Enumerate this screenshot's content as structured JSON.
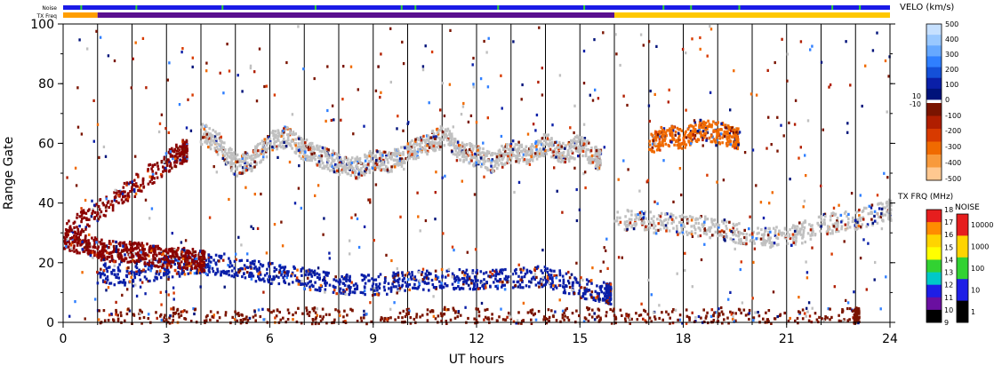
{
  "chart_data": {
    "type": "heatmap",
    "xlabel": "UT hours",
    "ylabel": "Range Gate",
    "xlim": [
      0,
      24
    ],
    "ylim": [
      0,
      100
    ],
    "x_ticks": [
      "0",
      "3",
      "6",
      "9",
      "12",
      "15",
      "18",
      "21",
      "24"
    ],
    "y_ticks": [
      "0",
      "20",
      "40",
      "60",
      "80",
      "100"
    ],
    "hour_gridlines": true,
    "strip_labels": {
      "noise": "Noise",
      "freq": "TX Freq"
    },
    "freq_strip": [
      {
        "start": 0,
        "end": 1.0,
        "color": "#ff9e00"
      },
      {
        "start": 1.0,
        "end": 16.0,
        "color": "#5a108f"
      },
      {
        "start": 16.0,
        "end": 24,
        "color": "#ffc800"
      }
    ],
    "noise_strip_color": "#1a1ae6",
    "noise_strip_marks": [
      0.5,
      2.1,
      4.6,
      7.3,
      9.8,
      10.2,
      12.6,
      15.1,
      17.4,
      18.2,
      19.6,
      22.3,
      23.1
    ],
    "velocity_scale": {
      "title": "VELO (km/s)",
      "ticks": [
        "500",
        "400",
        "300",
        "200",
        "100",
        "10",
        "0",
        "-10",
        "-100",
        "-200",
        "-300",
        "-400",
        "-500"
      ],
      "colors_pos": [
        "#c6e0ff",
        "#99c8ff",
        "#66a8ff",
        "#2f7fff",
        "#1450d8",
        "#0a1fa8",
        "#00127a"
      ],
      "colors_neg": [
        "#7a1400",
        "#b01e00",
        "#d83a00",
        "#f06a00",
        "#f89a3c",
        "#ffc890"
      ]
    },
    "freq_scale": {
      "title": "TX FRQ (MHz)",
      "ticks": [
        "18",
        "17",
        "16",
        "15",
        "14",
        "13",
        "12",
        "11",
        "10",
        "9"
      ],
      "colors": [
        "#e61e1e",
        "#ff8c00",
        "#ffd400",
        "#ffff00",
        "#32d232",
        "#00c8c8",
        "#1e1ee6",
        "#6a0fa0",
        "#000000"
      ]
    },
    "noise_scale": {
      "title": "NOISE",
      "ticks": [
        "10000",
        "1000",
        "100",
        "10",
        "1"
      ],
      "colors": [
        "#e61e1e",
        "#ffd400",
        "#32d232",
        "#1e1ee6",
        "#000000"
      ]
    },
    "series": [
      {
        "name": "Ground scatter band (upper)",
        "color": "#c0c0c0",
        "x": [
          4.0,
          4.5,
          5.0,
          5.5,
          6.0,
          6.5,
          7.0,
          7.5,
          8.0,
          8.5,
          9.0,
          9.5,
          10.0,
          10.5,
          11.0,
          11.5,
          12.0,
          12.5,
          13.0,
          13.5,
          14.0,
          14.5,
          15.0,
          15.5
        ],
        "y": [
          64,
          60,
          53,
          55,
          61,
          63,
          58,
          56,
          53,
          52,
          55,
          54,
          58,
          60,
          63,
          58,
          56,
          54,
          58,
          57,
          60,
          57,
          60,
          55
        ]
      },
      {
        "name": "Ground scatter band (lower)",
        "color": "#0a1fa8",
        "x": [
          1.0,
          2.0,
          3.0,
          4.0,
          5.0,
          6.0,
          7.0,
          8.0,
          9.0,
          10.0,
          11.0,
          12.0,
          13.0,
          14.0,
          15.0,
          15.8
        ],
        "y": [
          17,
          16,
          19,
          20,
          19,
          17,
          15,
          13,
          13,
          14,
          15,
          15,
          15,
          16,
          12,
          10
        ]
      },
      {
        "name": "Backscatter (negative velocity)",
        "color": "#8b0000",
        "x": [
          0.0,
          0.5,
          1.0,
          1.5,
          2.0,
          2.5,
          3.0,
          3.5,
          4.0
        ],
        "y": [
          28,
          27,
          25,
          24,
          24,
          23,
          22,
          22,
          21
        ]
      },
      {
        "name": "Rising streak",
        "color": "#8b0000",
        "x": [
          0.0,
          1.0,
          2.0,
          3.0,
          3.5
        ],
        "y": [
          30,
          38,
          46,
          54,
          58
        ]
      },
      {
        "name": "Evening ground scatter",
        "color": "#c0c0c0",
        "x": [
          16.0,
          17.0,
          18.0,
          19.0,
          20.0,
          21.0,
          22.0,
          23.0,
          24.0
        ],
        "y": [
          35,
          34,
          33,
          32,
          29,
          29,
          33,
          35,
          38
        ]
      },
      {
        "name": "Evening echoes",
        "color": "#f06a00",
        "x": [
          17.0,
          17.5,
          18.0,
          18.5,
          19.0,
          19.5
        ],
        "y": [
          60,
          63,
          62,
          65,
          64,
          62
        ]
      },
      {
        "name": "Near-range echoes",
        "color": "#7a1400",
        "x": [
          1,
          3,
          5,
          7,
          9,
          11,
          13,
          15,
          17,
          19,
          21,
          23
        ],
        "y": [
          1,
          2,
          1,
          2,
          1,
          2,
          1,
          2,
          1,
          2,
          1,
          2
        ]
      }
    ]
  }
}
